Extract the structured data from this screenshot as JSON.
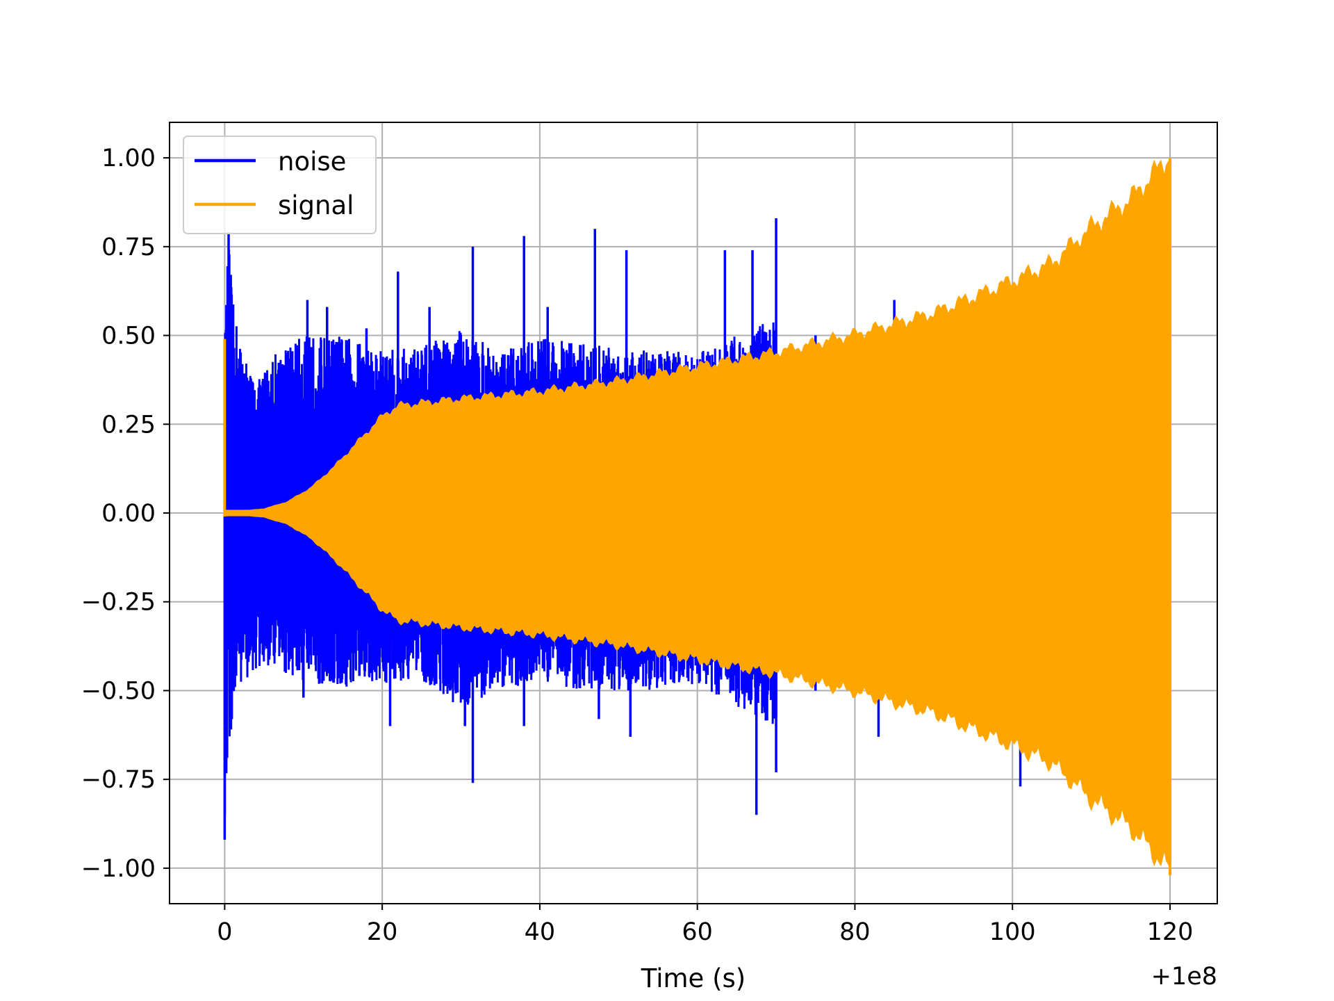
{
  "chart_data": {
    "type": "line",
    "title": "",
    "xlabel": "Time (s)",
    "ylabel": "",
    "x_offset_label": "+1e8",
    "xlim": [
      -7,
      126
    ],
    "ylim": [
      -1.1,
      1.1
    ],
    "x_ticks": [
      0,
      20,
      40,
      60,
      80,
      100,
      120
    ],
    "x_tick_labels": [
      "0",
      "20",
      "40",
      "60",
      "80",
      "100",
      "120"
    ],
    "y_ticks": [
      -1.0,
      -0.75,
      -0.5,
      -0.25,
      0.0,
      0.25,
      0.5,
      0.75,
      1.0
    ],
    "y_tick_labels": [
      "−1.00",
      "−0.75",
      "−0.50",
      "−0.25",
      "0.00",
      "0.25",
      "0.50",
      "0.75",
      "1.00"
    ],
    "grid": true,
    "legend_position": "top-left",
    "series": [
      {
        "name": "noise",
        "color": "#0000ff",
        "style": "dense-oscillation",
        "x_range": [
          0,
          70
        ],
        "upper_envelope": [
          [
            0,
            0.49
          ],
          [
            0.5,
            0.79
          ],
          [
            1,
            0.6
          ],
          [
            2,
            0.48
          ],
          [
            4,
            0.36
          ],
          [
            6,
            0.45
          ],
          [
            10,
            0.5
          ],
          [
            15,
            0.5
          ],
          [
            20,
            0.46
          ],
          [
            25,
            0.47
          ],
          [
            30,
            0.52
          ],
          [
            35,
            0.45
          ],
          [
            40,
            0.5
          ],
          [
            45,
            0.48
          ],
          [
            50,
            0.47
          ],
          [
            55,
            0.46
          ],
          [
            60,
            0.45
          ],
          [
            65,
            0.5
          ],
          [
            70,
            0.55
          ]
        ],
        "lower_envelope": [
          [
            0,
            -0.92
          ],
          [
            0.5,
            -0.66
          ],
          [
            1,
            -0.6
          ],
          [
            2,
            -0.48
          ],
          [
            4,
            -0.45
          ],
          [
            6,
            -0.43
          ],
          [
            10,
            -0.48
          ],
          [
            15,
            -0.5
          ],
          [
            20,
            -0.48
          ],
          [
            25,
            -0.47
          ],
          [
            30,
            -0.55
          ],
          [
            35,
            -0.5
          ],
          [
            40,
            -0.47
          ],
          [
            45,
            -0.5
          ],
          [
            50,
            -0.5
          ],
          [
            55,
            -0.5
          ],
          [
            60,
            -0.48
          ],
          [
            65,
            -0.55
          ],
          [
            70,
            -0.6
          ]
        ],
        "spikes": [
          [
            0.5,
            0.79
          ],
          [
            8.5,
            0.4
          ],
          [
            10.5,
            0.6
          ],
          [
            13,
            0.58
          ],
          [
            18,
            0.52
          ],
          [
            22,
            0.68
          ],
          [
            26,
            0.58
          ],
          [
            31.5,
            0.75
          ],
          [
            38,
            0.78
          ],
          [
            41,
            0.58
          ],
          [
            47,
            0.8
          ],
          [
            51,
            0.74
          ],
          [
            63.5,
            0.74
          ],
          [
            67,
            0.74
          ],
          [
            70,
            0.83
          ],
          [
            0,
            -0.92
          ],
          [
            10,
            -0.52
          ],
          [
            21,
            -0.6
          ],
          [
            30.5,
            -0.6
          ],
          [
            31.5,
            -0.76
          ],
          [
            38,
            -0.6
          ],
          [
            47.5,
            -0.58
          ],
          [
            51.5,
            -0.63
          ],
          [
            67.5,
            -0.85
          ],
          [
            70,
            -0.73
          ]
        ],
        "extra_spikes": [
          [
            75,
            0.5
          ],
          [
            80,
            0.5
          ],
          [
            85,
            0.6
          ],
          [
            100,
            0.6
          ],
          [
            75,
            -0.5
          ],
          [
            83,
            -0.63
          ],
          [
            101,
            -0.77
          ]
        ]
      },
      {
        "name": "signal",
        "color": "#ffa500",
        "style": "dense-oscillation",
        "x_range": [
          0,
          120
        ],
        "initial_spike": 0.49,
        "amplitude_envelope": [
          [
            0,
            0.0
          ],
          [
            5,
            0.01
          ],
          [
            8,
            0.03
          ],
          [
            11,
            0.07
          ],
          [
            14,
            0.13
          ],
          [
            17,
            0.2
          ],
          [
            20,
            0.27
          ],
          [
            22,
            0.3
          ],
          [
            30,
            0.32
          ],
          [
            40,
            0.34
          ],
          [
            50,
            0.37
          ],
          [
            60,
            0.41
          ],
          [
            70,
            0.45
          ],
          [
            80,
            0.5
          ],
          [
            90,
            0.56
          ],
          [
            100,
            0.65
          ],
          [
            105,
            0.7
          ],
          [
            110,
            0.8
          ],
          [
            115,
            0.88
          ],
          [
            120,
            1.0
          ]
        ]
      }
    ]
  }
}
